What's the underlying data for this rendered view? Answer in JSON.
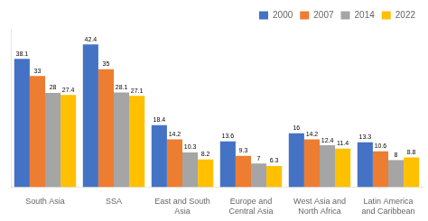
{
  "chart_data": {
    "type": "bar",
    "categories": [
      "South Asia",
      "SSA",
      "East and South\nAsia",
      "Europe and\nCentral Asia",
      "West Asia and\nNorth Africa",
      "Latin America\nand Caribbean"
    ],
    "series": [
      {
        "name": "2000",
        "color": "#4472c4",
        "values": [
          38.1,
          42.4,
          18.4,
          13.6,
          16.0,
          13.3
        ]
      },
      {
        "name": "2007",
        "color": "#ed7d31",
        "values": [
          33,
          35,
          14.2,
          9.3,
          14.2,
          10.6
        ]
      },
      {
        "name": "2014",
        "color": "#a5a5a5",
        "values": [
          28,
          28.1,
          10.3,
          7,
          12.4,
          8
        ]
      },
      {
        "name": "2022",
        "color": "#ffc000",
        "values": [
          27.4,
          27.1,
          8.2,
          6.3,
          11.4,
          8.8
        ]
      }
    ],
    "ylim": [
      0,
      47
    ],
    "tick_labels": "x",
    "grid": false,
    "legend": "upper right",
    "data_labels": true
  }
}
